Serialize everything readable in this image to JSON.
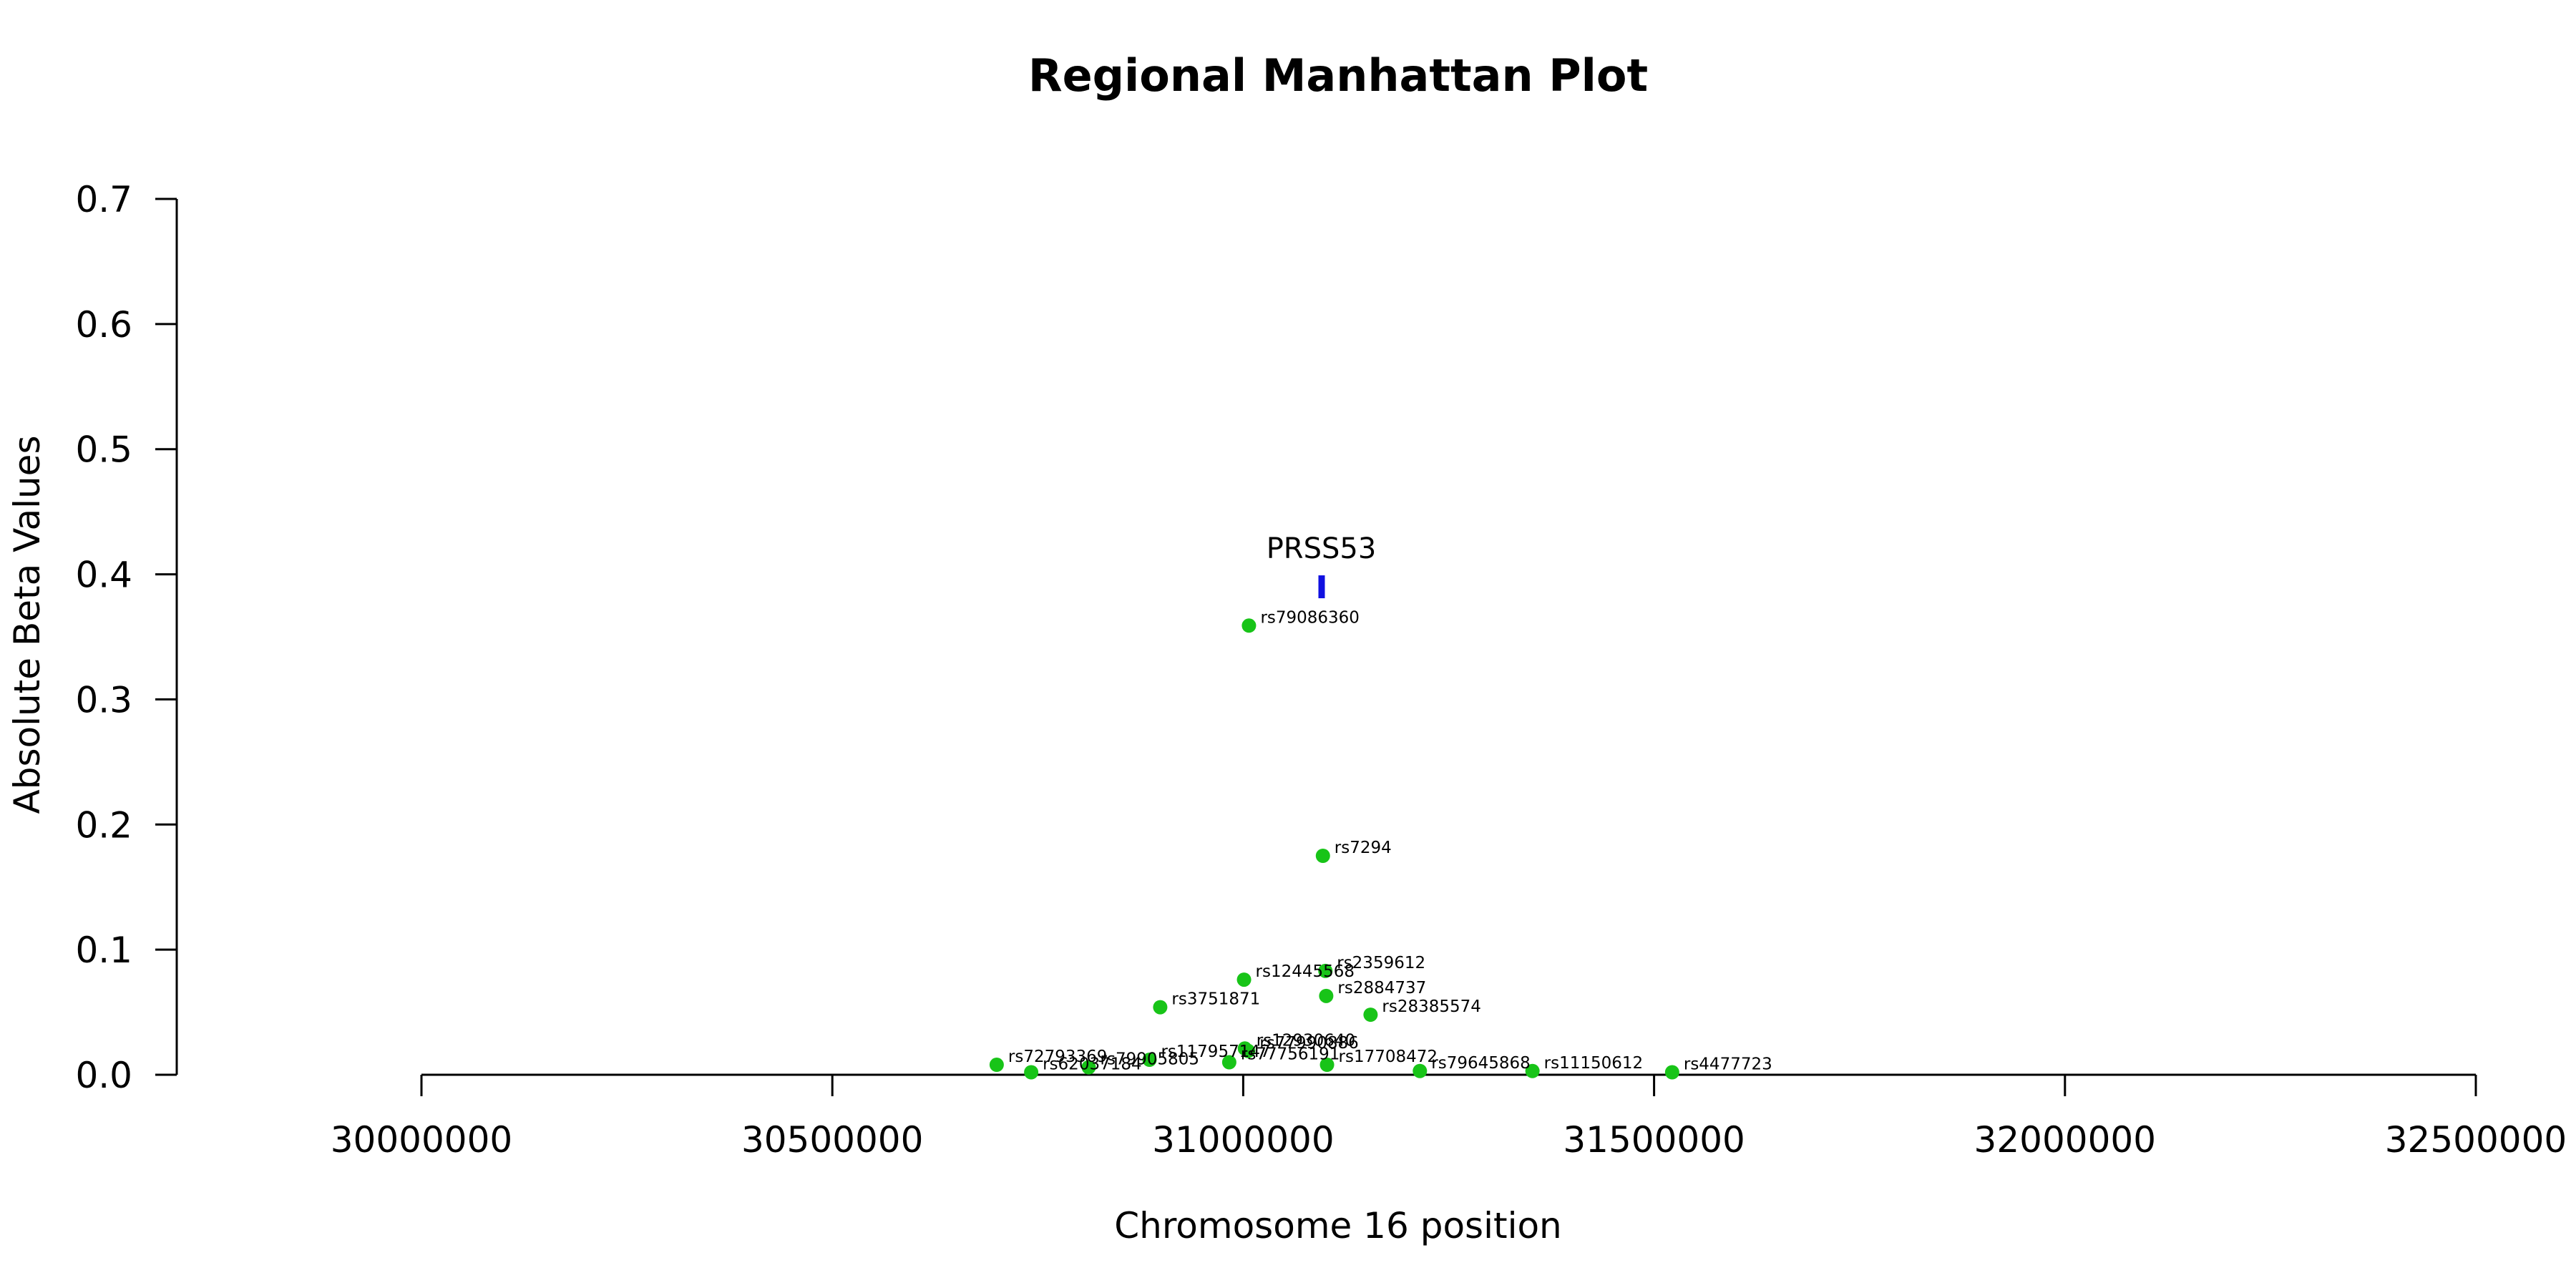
{
  "chart_data": {
    "type": "scatter",
    "title": "Regional Manhattan Plot",
    "xlabel": "Chromosome 16 position",
    "ylabel": "Absolute Beta Values",
    "xlim": [
      30000000,
      32500000
    ],
    "ylim": [
      0,
      0.7
    ],
    "x_ticks": [
      30000000,
      30500000,
      31000000,
      31500000,
      32000000,
      32500000
    ],
    "y_ticks": [
      0.0,
      0.1,
      0.2,
      0.3,
      0.4,
      0.5,
      0.6,
      0.7
    ],
    "x_tick_labels": [
      "30000000",
      "30500000",
      "31000000",
      "31500000",
      "32000000",
      "32500000"
    ],
    "y_tick_labels": [
      "0.0",
      "0.1",
      "0.2",
      "0.3",
      "0.4",
      "0.5",
      "0.6",
      "0.7"
    ],
    "grid": false,
    "point_color": "#18c418",
    "gene_color": "#1010e0",
    "genes": [
      {
        "name": "PRSS53",
        "x": 31095000,
        "y": 0.39
      }
    ],
    "points": [
      {
        "label": "rs79086360",
        "x": 31007000,
        "y": 0.359
      },
      {
        "label": "rs7294",
        "x": 31097000,
        "y": 0.175
      },
      {
        "label": "rs2359612",
        "x": 31100000,
        "y": 0.083
      },
      {
        "label": "rs12445568",
        "x": 31001000,
        "y": 0.076
      },
      {
        "label": "rs2884737",
        "x": 31101000,
        "y": 0.063
      },
      {
        "label": "rs3751871",
        "x": 30899000,
        "y": 0.054
      },
      {
        "label": "rs28385574",
        "x": 31155000,
        "y": 0.048
      },
      {
        "label": "rs12930640",
        "x": 31002000,
        "y": 0.021
      },
      {
        "label": "rs77990886",
        "x": 31006000,
        "y": 0.019
      },
      {
        "label": "rs117957147",
        "x": 30886000,
        "y": 0.012
      },
      {
        "label": "rs77756191",
        "x": 30983000,
        "y": 0.01
      },
      {
        "label": "rs72793369",
        "x": 30700000,
        "y": 0.008
      },
      {
        "label": "rs17708472",
        "x": 31102000,
        "y": 0.008
      },
      {
        "label": "rs79905805",
        "x": 30812000,
        "y": 0.006
      },
      {
        "label": "rs79645868",
        "x": 31215000,
        "y": 0.003
      },
      {
        "label": "rs11150612",
        "x": 31352000,
        "y": 0.003
      },
      {
        "label": "rs62037184",
        "x": 30742000,
        "y": 0.002
      },
      {
        "label": "rs4477723",
        "x": 31522000,
        "y": 0.002
      }
    ]
  }
}
